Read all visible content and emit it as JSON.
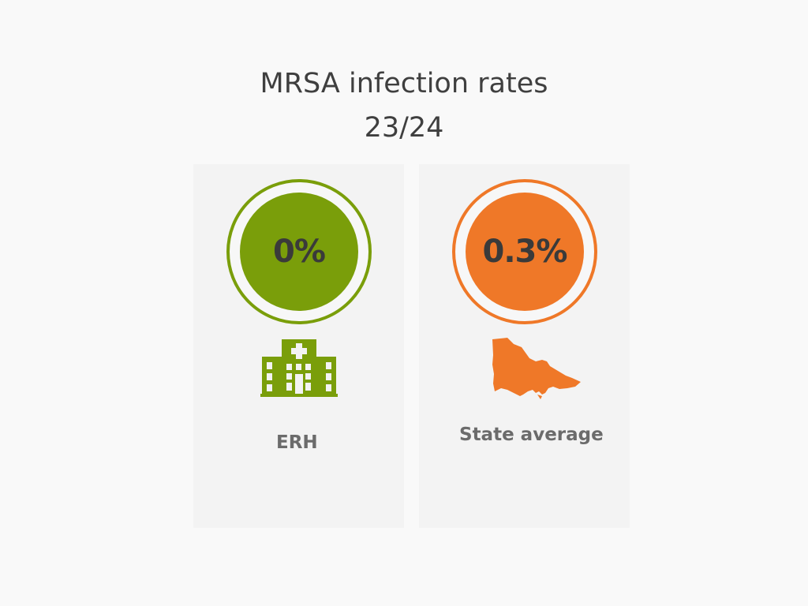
{
  "title": {
    "line1": "MRSA infection rates",
    "line2": "23/24"
  },
  "cards": [
    {
      "value": "0%",
      "label": "ERH",
      "icon": "hospital-icon",
      "color": "#7a9e0a"
    },
    {
      "value": "0.3%",
      "label": "State average",
      "icon": "victoria-map-icon",
      "color": "#ef7828"
    }
  ]
}
